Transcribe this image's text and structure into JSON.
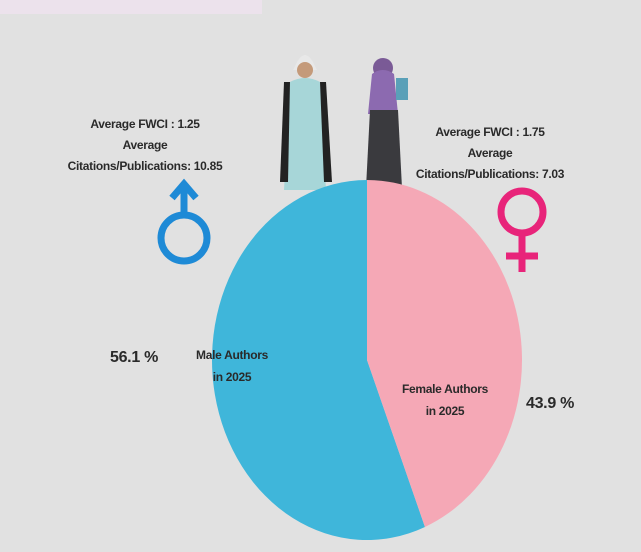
{
  "chart_data": {
    "type": "pie",
    "categories": [
      [
        "Male Authors",
        "in 2025"
      ],
      [
        "Female Authors",
        "in 2025"
      ]
    ],
    "values": [
      56.1,
      43.9
    ],
    "value_labels": [
      "56.1 %",
      "43.9 %"
    ],
    "colors": [
      "#3fb6da",
      "#f5a8b6"
    ],
    "value_label_colors": [
      "#3a2c9e",
      "#f06aa6"
    ],
    "annotations": [
      [
        "Average FWCI : 1.25",
        "Average",
        "Citations/Publications: 10.85"
      ],
      [
        "Average FWCI : 1.75",
        "Average",
        "Citations/Publications: 7.03"
      ]
    ]
  }
}
